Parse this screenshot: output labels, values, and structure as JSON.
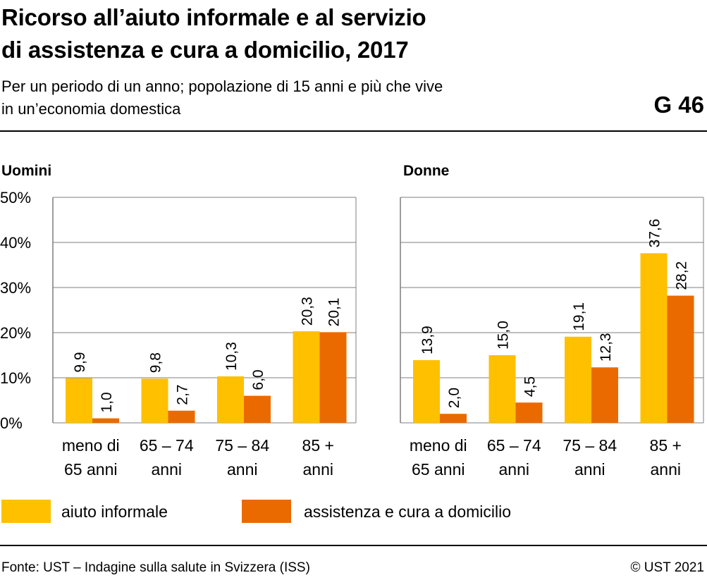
{
  "header": {
    "title_line1": "Ricorso all’aiuto informale e al servizio",
    "title_line2": "di assistenza e cura a domicilio, 2017",
    "subtitle_line1": "Per un periodo di un anno; popolazione di 15 anni e più che vive",
    "subtitle_line2": "in un’economia domestica",
    "code": "G 46"
  },
  "footer": {
    "source": "Fonte: UST – Indagine sulla salute in Svizzera (ISS)",
    "copyright": "© UST 2021"
  },
  "colors": {
    "aiuto_informale": "#FFC000",
    "assistenza": "#EB6A00",
    "grid": "#7F7F7F"
  },
  "legend": [
    {
      "name": "aiuto informale",
      "color": "#FFC000"
    },
    {
      "name": "assistenza e cura a domicilio",
      "color": "#EB6A00"
    }
  ],
  "chart_data": [
    {
      "type": "bar",
      "title": "Uomini",
      "categories": [
        [
          "meno di",
          "65 anni"
        ],
        [
          "65 – 74",
          "anni"
        ],
        [
          "75 – 84",
          "anni"
        ],
        [
          "85 +",
          "anni"
        ]
      ],
      "ylim": [
        0,
        50
      ],
      "yticks": [
        "0%",
        "10%",
        "20%",
        "30%",
        "40%",
        "50%"
      ],
      "series": [
        {
          "name": "aiuto informale",
          "values": [
            9.9,
            9.8,
            10.3,
            20.3
          ],
          "labels": [
            "9,9",
            "9,8",
            "10,3",
            "20,3"
          ]
        },
        {
          "name": "assistenza e cura a domicilio",
          "values": [
            1.0,
            2.7,
            6.0,
            20.1
          ],
          "labels": [
            "1,0",
            "2,7",
            "6,0",
            "20,1"
          ]
        }
      ],
      "grid": true,
      "legend_position": "bottom"
    },
    {
      "type": "bar",
      "title": "Donne",
      "categories": [
        [
          "meno di",
          "65 anni"
        ],
        [
          "65 – 74",
          "anni"
        ],
        [
          "75 – 84",
          "anni"
        ],
        [
          "85 +",
          "anni"
        ]
      ],
      "ylim": [
        0,
        50
      ],
      "yticks": [],
      "series": [
        {
          "name": "aiuto informale",
          "values": [
            13.9,
            15.0,
            19.1,
            37.6
          ],
          "labels": [
            "13,9",
            "15,0",
            "19,1",
            "37,6"
          ]
        },
        {
          "name": "assistenza e cura a domicilio",
          "values": [
            2.0,
            4.5,
            12.3,
            28.2
          ],
          "labels": [
            "2,0",
            "4,5",
            "12,3",
            "28,2"
          ]
        }
      ],
      "grid": true,
      "legend_position": "bottom"
    }
  ]
}
